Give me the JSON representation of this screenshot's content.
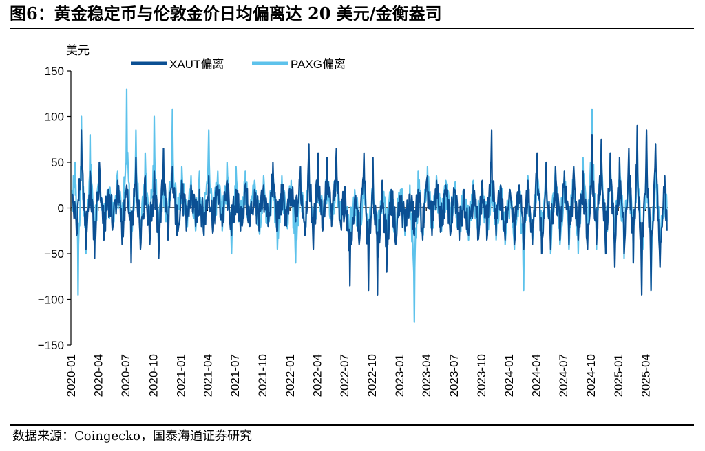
{
  "title": "图6：黄金稳定币与伦敦金价日均偏离达 20 美元/金衡盎司",
  "source": "数据来源：Coingecko，国泰海通证券研究",
  "colors": {
    "xaut": "#0B4F93",
    "paxg": "#5DC2EB"
  },
  "chart_data": {
    "type": "line",
    "ylabel": "美元",
    "ylim": [
      -150,
      150
    ],
    "yticks": [
      -150,
      -100,
      -50,
      0,
      50,
      100,
      150
    ],
    "xlim": [
      "2020-01-01",
      "2025-06-15"
    ],
    "xticks": [
      "2020-01",
      "2020-04",
      "2020-07",
      "2020-10",
      "2021-01",
      "2021-04",
      "2021-07",
      "2021-10",
      "2022-01",
      "2022-04",
      "2022-07",
      "2022-10",
      "2023-01",
      "2023-04",
      "2023-07",
      "2023-10",
      "2024-01",
      "2024-04",
      "2024-07",
      "2024-10",
      "2025-01",
      "2025-04"
    ],
    "legend_position": "top",
    "series": [
      {
        "name": "XAUT偏离",
        "color": "#0B4F93",
        "points": [
          [
            "2020-01-05",
            15
          ],
          [
            "2020-01-20",
            -30
          ],
          [
            "2020-02-05",
            85
          ],
          [
            "2020-02-20",
            -45
          ],
          [
            "2020-03-05",
            40
          ],
          [
            "2020-03-20",
            -55
          ],
          [
            "2020-04-05",
            50
          ],
          [
            "2020-04-20",
            -35
          ],
          [
            "2020-05-05",
            20
          ],
          [
            "2020-05-20",
            -20
          ],
          [
            "2020-06-05",
            30
          ],
          [
            "2020-06-20",
            -40
          ],
          [
            "2020-07-05",
            25
          ],
          [
            "2020-07-20",
            -60
          ],
          [
            "2020-08-05",
            55
          ],
          [
            "2020-08-20",
            -45
          ],
          [
            "2020-09-05",
            35
          ],
          [
            "2020-09-20",
            -40
          ],
          [
            "2020-10-05",
            40
          ],
          [
            "2020-10-20",
            -55
          ],
          [
            "2020-11-05",
            65
          ],
          [
            "2020-11-20",
            -35
          ],
          [
            "2020-12-05",
            45
          ],
          [
            "2020-12-20",
            -30
          ],
          [
            "2021-01-05",
            30
          ],
          [
            "2021-01-20",
            -25
          ],
          [
            "2021-02-05",
            25
          ],
          [
            "2021-02-20",
            -20
          ],
          [
            "2021-03-05",
            20
          ],
          [
            "2021-03-20",
            -30
          ],
          [
            "2021-04-05",
            35
          ],
          [
            "2021-04-20",
            -25
          ],
          [
            "2021-05-05",
            25
          ],
          [
            "2021-05-20",
            -20
          ],
          [
            "2021-06-05",
            30
          ],
          [
            "2021-06-20",
            -30
          ],
          [
            "2021-07-05",
            20
          ],
          [
            "2021-07-20",
            -25
          ],
          [
            "2021-08-05",
            25
          ],
          [
            "2021-08-20",
            -20
          ],
          [
            "2021-09-05",
            20
          ],
          [
            "2021-09-20",
            -25
          ],
          [
            "2021-10-05",
            25
          ],
          [
            "2021-10-20",
            -20
          ],
          [
            "2021-11-05",
            50
          ],
          [
            "2021-11-20",
            -25
          ],
          [
            "2021-12-05",
            25
          ],
          [
            "2021-12-20",
            -20
          ],
          [
            "2022-01-05",
            20
          ],
          [
            "2022-01-20",
            -15
          ],
          [
            "2022-02-05",
            45
          ],
          [
            "2022-02-20",
            -30
          ],
          [
            "2022-03-05",
            70
          ],
          [
            "2022-03-20",
            -45
          ],
          [
            "2022-04-05",
            60
          ],
          [
            "2022-04-20",
            -25
          ],
          [
            "2022-05-05",
            55
          ],
          [
            "2022-05-20",
            -20
          ],
          [
            "2022-06-05",
            65
          ],
          [
            "2022-06-20",
            -20
          ],
          [
            "2022-07-05",
            20
          ],
          [
            "2022-07-20",
            -85
          ],
          [
            "2022-08-05",
            10
          ],
          [
            "2022-08-20",
            -40
          ],
          [
            "2022-09-05",
            60
          ],
          [
            "2022-09-20",
            -90
          ],
          [
            "2022-10-05",
            55
          ],
          [
            "2022-10-20",
            -95
          ],
          [
            "2022-11-05",
            30
          ],
          [
            "2022-11-20",
            -70
          ],
          [
            "2022-12-05",
            20
          ],
          [
            "2022-12-20",
            -40
          ],
          [
            "2023-01-05",
            10
          ],
          [
            "2023-01-20",
            -25
          ],
          [
            "2023-02-05",
            15
          ],
          [
            "2023-02-20",
            -30
          ],
          [
            "2023-03-05",
            20
          ],
          [
            "2023-03-20",
            -35
          ],
          [
            "2023-04-05",
            35
          ],
          [
            "2023-04-20",
            -30
          ],
          [
            "2023-05-05",
            30
          ],
          [
            "2023-05-20",
            -25
          ],
          [
            "2023-06-05",
            25
          ],
          [
            "2023-06-20",
            -30
          ],
          [
            "2023-07-05",
            20
          ],
          [
            "2023-07-20",
            -35
          ],
          [
            "2023-08-05",
            20
          ],
          [
            "2023-08-20",
            -30
          ],
          [
            "2023-09-05",
            25
          ],
          [
            "2023-09-20",
            -35
          ],
          [
            "2023-10-05",
            30
          ],
          [
            "2023-10-20",
            -35
          ],
          [
            "2023-11-05",
            85
          ],
          [
            "2023-11-20",
            -30
          ],
          [
            "2023-12-05",
            25
          ],
          [
            "2023-12-20",
            -35
          ],
          [
            "2024-01-05",
            20
          ],
          [
            "2024-01-20",
            -40
          ],
          [
            "2024-02-05",
            25
          ],
          [
            "2024-02-20",
            -45
          ],
          [
            "2024-03-05",
            30
          ],
          [
            "2024-03-20",
            -40
          ],
          [
            "2024-04-05",
            60
          ],
          [
            "2024-04-20",
            -50
          ],
          [
            "2024-05-05",
            50
          ],
          [
            "2024-05-20",
            -45
          ],
          [
            "2024-06-05",
            45
          ],
          [
            "2024-06-20",
            -35
          ],
          [
            "2024-07-05",
            40
          ],
          [
            "2024-07-20",
            -40
          ],
          [
            "2024-08-05",
            45
          ],
          [
            "2024-08-20",
            -35
          ],
          [
            "2024-09-05",
            40
          ],
          [
            "2024-09-20",
            -45
          ],
          [
            "2024-10-05",
            80
          ],
          [
            "2024-10-20",
            -40
          ],
          [
            "2024-11-05",
            75
          ],
          [
            "2024-11-20",
            -50
          ],
          [
            "2024-12-05",
            60
          ],
          [
            "2024-12-20",
            -65
          ],
          [
            "2025-01-05",
            55
          ],
          [
            "2025-01-20",
            -50
          ],
          [
            "2025-02-05",
            65
          ],
          [
            "2025-02-20",
            -60
          ],
          [
            "2025-03-05",
            90
          ],
          [
            "2025-03-20",
            -95
          ],
          [
            "2025-04-05",
            85
          ],
          [
            "2025-04-20",
            -90
          ],
          [
            "2025-05-05",
            70
          ],
          [
            "2025-05-20",
            -65
          ],
          [
            "2025-06-05",
            35
          ],
          [
            "2025-06-12",
            -25
          ]
        ]
      },
      {
        "name": "PAXG偏离",
        "color": "#5DC2EB",
        "points": [
          [
            "2020-01-05",
            20
          ],
          [
            "2020-01-15",
            50
          ],
          [
            "2020-01-25",
            -95
          ],
          [
            "2020-02-05",
            100
          ],
          [
            "2020-02-20",
            -50
          ],
          [
            "2020-03-05",
            80
          ],
          [
            "2020-03-20",
            -40
          ],
          [
            "2020-04-05",
            40
          ],
          [
            "2020-04-20",
            -25
          ],
          [
            "2020-05-05",
            20
          ],
          [
            "2020-05-20",
            -15
          ],
          [
            "2020-06-05",
            40
          ],
          [
            "2020-06-20",
            -35
          ],
          [
            "2020-07-05",
            130
          ],
          [
            "2020-07-20",
            -50
          ],
          [
            "2020-08-05",
            85
          ],
          [
            "2020-08-20",
            -40
          ],
          [
            "2020-09-05",
            60
          ],
          [
            "2020-09-20",
            -35
          ],
          [
            "2020-10-05",
            100
          ],
          [
            "2020-10-20",
            -50
          ],
          [
            "2020-11-05",
            45
          ],
          [
            "2020-11-20",
            -25
          ],
          [
            "2020-12-05",
            108
          ],
          [
            "2020-12-20",
            -30
          ],
          [
            "2021-01-05",
            45
          ],
          [
            "2021-01-20",
            -20
          ],
          [
            "2021-02-05",
            35
          ],
          [
            "2021-02-20",
            -25
          ],
          [
            "2021-03-05",
            40
          ],
          [
            "2021-03-20",
            -30
          ],
          [
            "2021-04-05",
            85
          ],
          [
            "2021-04-20",
            -20
          ],
          [
            "2021-05-05",
            40
          ],
          [
            "2021-05-20",
            -25
          ],
          [
            "2021-06-05",
            50
          ],
          [
            "2021-06-20",
            -50
          ],
          [
            "2021-07-05",
            45
          ],
          [
            "2021-07-20",
            -25
          ],
          [
            "2021-08-05",
            40
          ],
          [
            "2021-08-20",
            -20
          ],
          [
            "2021-09-05",
            30
          ],
          [
            "2021-09-20",
            -25
          ],
          [
            "2021-10-05",
            35
          ],
          [
            "2021-10-20",
            -20
          ],
          [
            "2021-11-05",
            40
          ],
          [
            "2021-11-20",
            -45
          ],
          [
            "2021-12-05",
            35
          ],
          [
            "2021-12-20",
            -20
          ],
          [
            "2022-01-05",
            30
          ],
          [
            "2022-01-20",
            -60
          ],
          [
            "2022-02-05",
            40
          ],
          [
            "2022-02-20",
            -25
          ],
          [
            "2022-03-05",
            50
          ],
          [
            "2022-03-20",
            -30
          ],
          [
            "2022-04-05",
            45
          ],
          [
            "2022-04-20",
            -20
          ],
          [
            "2022-05-05",
            40
          ],
          [
            "2022-05-20",
            -15
          ],
          [
            "2022-06-05",
            55
          ],
          [
            "2022-06-20",
            -20
          ],
          [
            "2022-07-05",
            15
          ],
          [
            "2022-07-20",
            -40
          ],
          [
            "2022-08-05",
            20
          ],
          [
            "2022-08-20",
            -30
          ],
          [
            "2022-09-05",
            25
          ],
          [
            "2022-09-20",
            -45
          ],
          [
            "2022-10-05",
            30
          ],
          [
            "2022-10-20",
            -60
          ],
          [
            "2022-11-05",
            25
          ],
          [
            "2022-11-20",
            -35
          ],
          [
            "2022-12-05",
            20
          ],
          [
            "2022-12-20",
            -35
          ],
          [
            "2023-01-05",
            20
          ],
          [
            "2023-01-20",
            -30
          ],
          [
            "2023-02-05",
            25
          ],
          [
            "2023-02-20",
            -125
          ],
          [
            "2023-03-05",
            40
          ],
          [
            "2023-03-20",
            -30
          ],
          [
            "2023-04-05",
            45
          ],
          [
            "2023-04-20",
            -25
          ],
          [
            "2023-05-05",
            35
          ],
          [
            "2023-05-20",
            -20
          ],
          [
            "2023-06-05",
            30
          ],
          [
            "2023-06-20",
            -25
          ],
          [
            "2023-07-05",
            25
          ],
          [
            "2023-07-20",
            -30
          ],
          [
            "2023-08-05",
            20
          ],
          [
            "2023-08-20",
            -35
          ],
          [
            "2023-09-05",
            30
          ],
          [
            "2023-09-20",
            -25
          ],
          [
            "2023-10-05",
            25
          ],
          [
            "2023-10-20",
            -30
          ],
          [
            "2023-11-05",
            30
          ],
          [
            "2023-11-20",
            -35
          ],
          [
            "2023-12-05",
            25
          ],
          [
            "2023-12-20",
            -40
          ],
          [
            "2024-01-05",
            20
          ],
          [
            "2024-01-20",
            -45
          ],
          [
            "2024-02-05",
            25
          ],
          [
            "2024-02-20",
            -90
          ],
          [
            "2024-03-05",
            35
          ],
          [
            "2024-03-20",
            -40
          ],
          [
            "2024-04-05",
            55
          ],
          [
            "2024-04-20",
            -45
          ],
          [
            "2024-05-05",
            50
          ],
          [
            "2024-05-20",
            -50
          ],
          [
            "2024-06-05",
            45
          ],
          [
            "2024-06-20",
            -40
          ],
          [
            "2024-07-05",
            40
          ],
          [
            "2024-07-20",
            -45
          ],
          [
            "2024-08-05",
            45
          ],
          [
            "2024-08-20",
            -50
          ],
          [
            "2024-09-05",
            55
          ],
          [
            "2024-09-20",
            -40
          ],
          [
            "2024-10-05",
            108
          ],
          [
            "2024-10-20",
            -45
          ],
          [
            "2024-11-05",
            70
          ],
          [
            "2024-11-20",
            -50
          ],
          [
            "2024-12-05",
            60
          ],
          [
            "2024-12-20",
            -45
          ],
          [
            "2025-01-05",
            50
          ],
          [
            "2025-01-20",
            -55
          ],
          [
            "2025-02-05",
            60
          ],
          [
            "2025-02-20",
            -60
          ],
          [
            "2025-03-05",
            85
          ],
          [
            "2025-03-20",
            -85
          ],
          [
            "2025-04-05",
            80
          ],
          [
            "2025-04-20",
            -90
          ],
          [
            "2025-05-05",
            70
          ],
          [
            "2025-05-20",
            -60
          ],
          [
            "2025-06-05",
            30
          ],
          [
            "2025-06-12",
            -15
          ]
        ]
      }
    ]
  }
}
